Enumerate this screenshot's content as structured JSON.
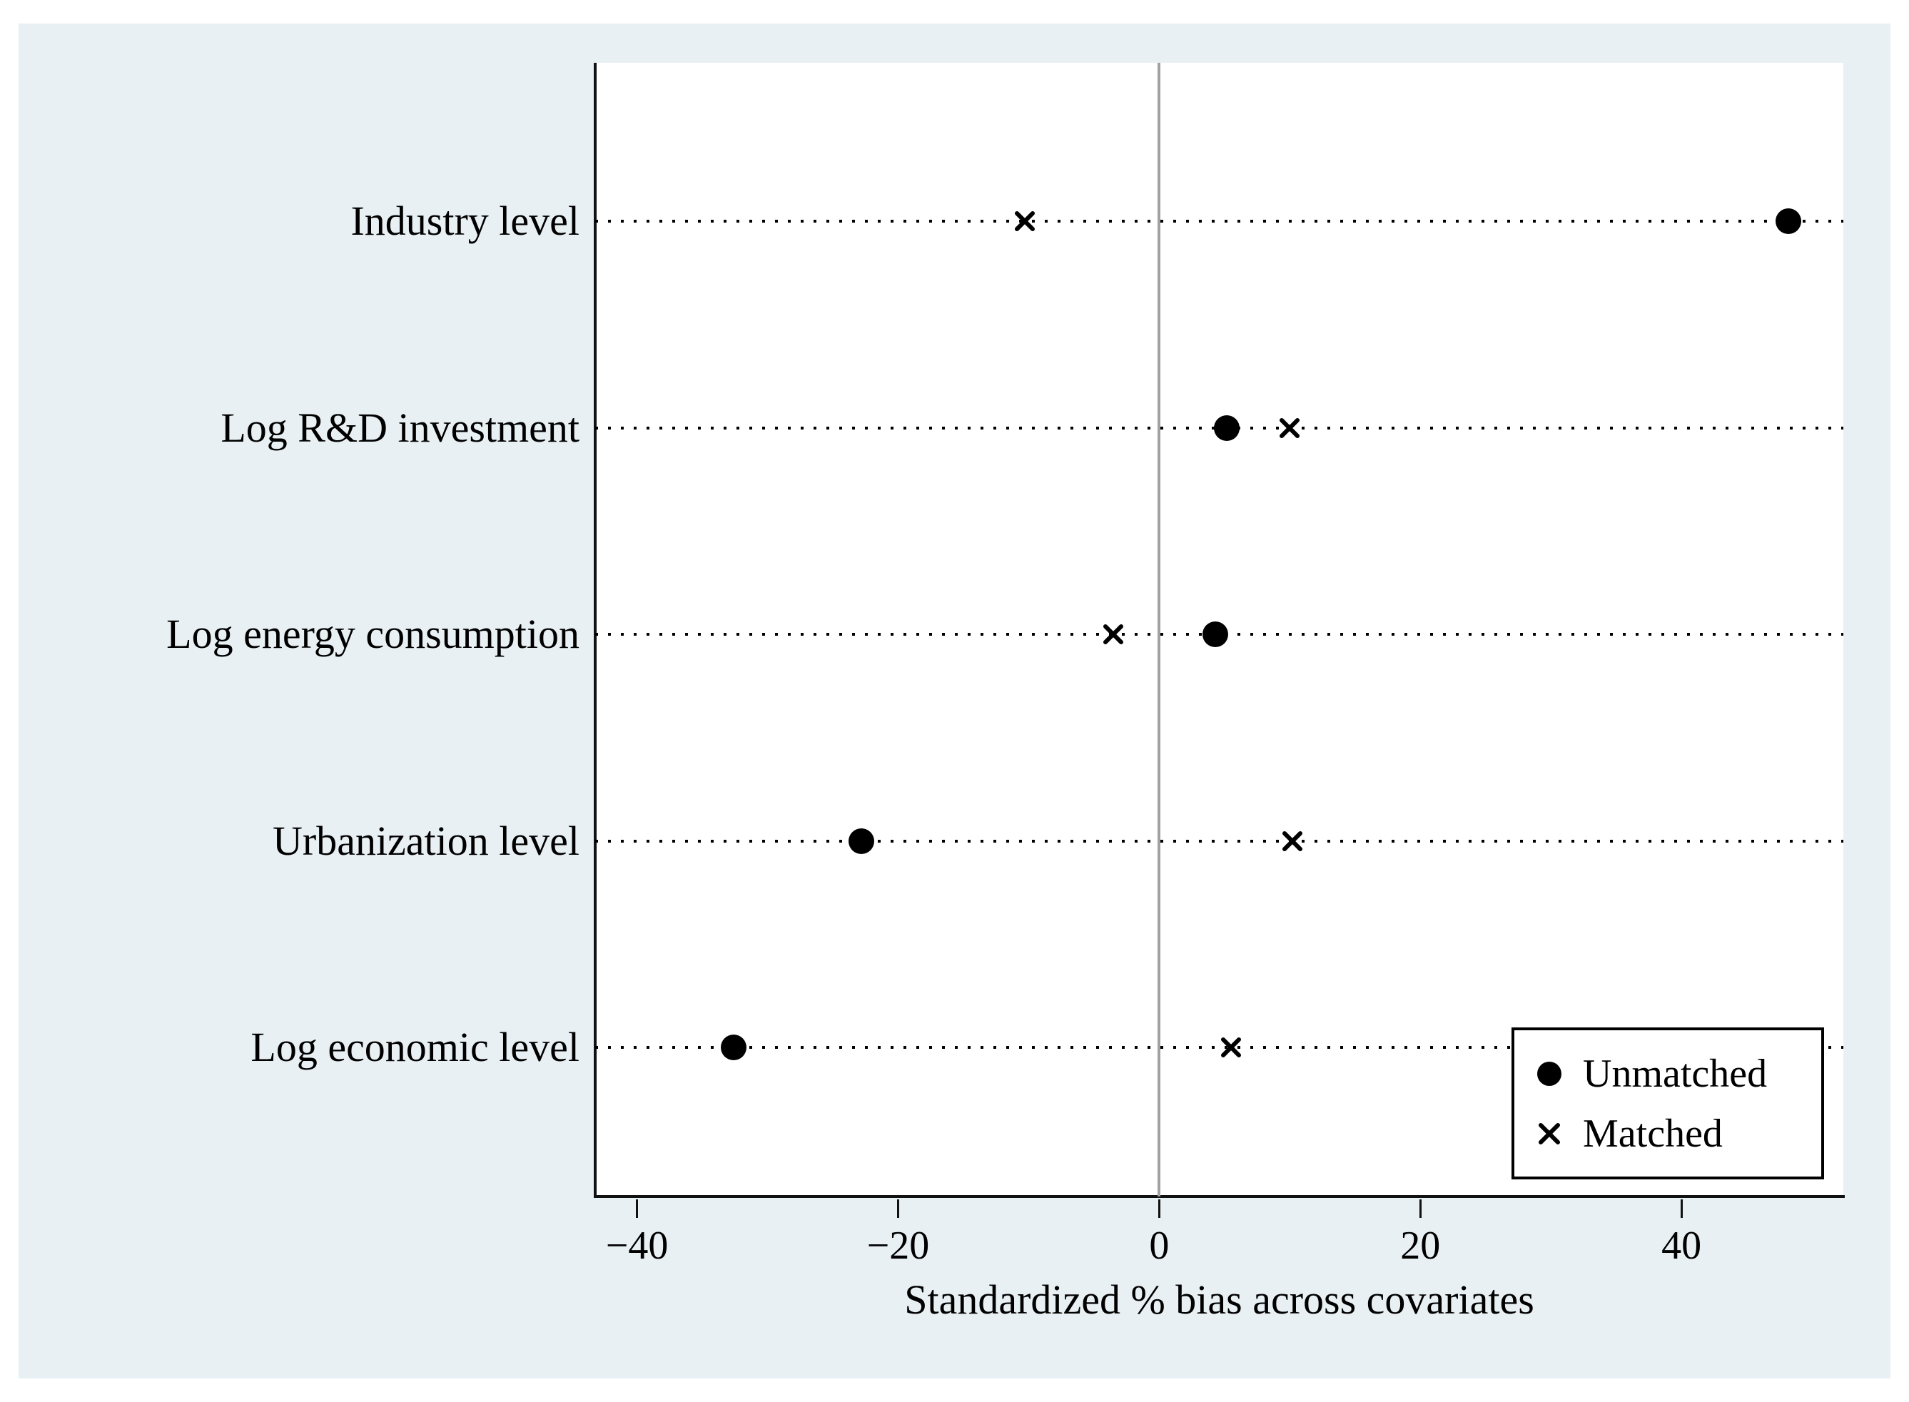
{
  "chart_data": {
    "type": "scatter",
    "title": "",
    "xlabel": "Standardized % bias across covariates",
    "ylabel": "",
    "categories": [
      "Industry level",
      "Log R&D investment",
      "Log energy consumption",
      "Urbanization level",
      "Log economic level"
    ],
    "series": [
      {
        "name": "Unmatched",
        "marker": "circle",
        "values": [
          48.2,
          5.2,
          4.3,
          -22.8,
          -32.6
        ]
      },
      {
        "name": "Matched",
        "marker": "x",
        "values": [
          -10.3,
          10.0,
          -3.5,
          10.2,
          5.5
        ]
      }
    ],
    "xlim": [
      -43.2,
      52.4
    ],
    "xticks": [
      -40,
      -20,
      0,
      20,
      40
    ],
    "xtick_labels": [
      "−40",
      "−20",
      "0",
      "20",
      "40"
    ],
    "grid": "dotted horizontal line per category",
    "zero_line": true,
    "legend_position": "inside bottom-right"
  },
  "legend": {
    "unmatched_label": "Unmatched",
    "matched_label": "Matched"
  },
  "colors": {
    "background_panel": "#e9f0f3",
    "plot_background": "#ffffff",
    "axis": "#111111",
    "zero_line": "#a0a0a0",
    "marker": "#000000",
    "text": "#000000"
  }
}
